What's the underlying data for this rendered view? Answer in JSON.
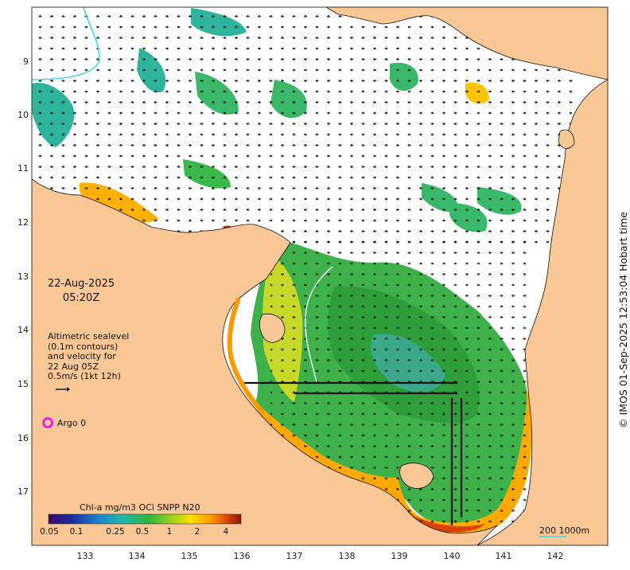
{
  "map": {
    "product": "Chl-a mg/m3 OCi SNPP N20",
    "date": "22-Aug-2025",
    "time": "05:20Z",
    "lon_ticks": [
      "133",
      "134",
      "135",
      "136",
      "137",
      "138",
      "139",
      "140",
      "141",
      "142"
    ],
    "lat_ticks": [
      "9",
      "10",
      "11",
      "12",
      "13",
      "14",
      "15",
      "16",
      "17"
    ],
    "legend_lines": [
      "Altimetric sealevel",
      "(0.1m contours)",
      "and velocity for",
      "22 Aug 05Z",
      "0.5m/s (1kt 12h)"
    ],
    "argo_label": "Argo 0",
    "colorbar": {
      "title": "Chl-a mg/m3 OCi SNPP N20",
      "ticks": [
        "0.05",
        "0.1",
        "0.25",
        "0.5",
        "1",
        "2",
        "4"
      ]
    },
    "scale_label": "200  1000m",
    "credit": "© IMOS 01-Sep-2025 12:53:04 Hobart time",
    "colors": {
      "land": "#fac896",
      "ocean_nodata": "#ffffff",
      "chl_low": "#2db49b",
      "chl_mid": "#32b43c",
      "chl_high": "#ffbe00",
      "chl_max": "#c83200",
      "argo_marker": "#ff00ff",
      "river": "#39d4e4"
    }
  }
}
